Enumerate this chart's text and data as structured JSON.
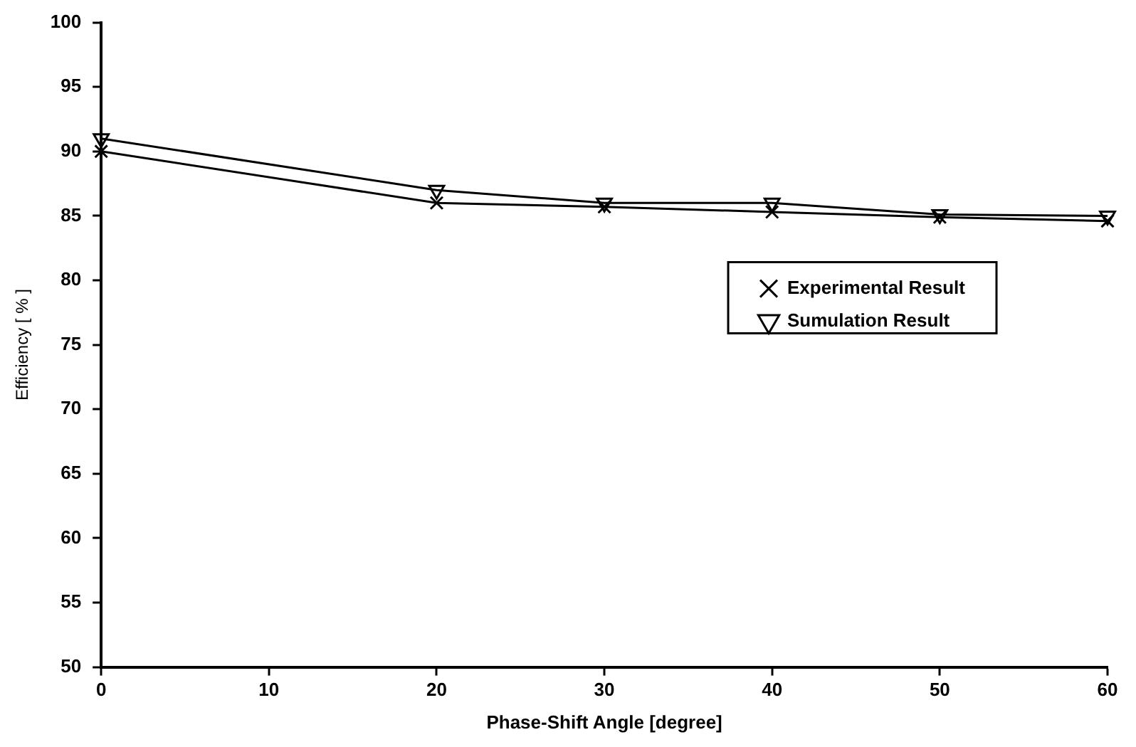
{
  "chart_data": {
    "type": "line",
    "xlabel": "Phase-Shift Angle [degree]",
    "ylabel": "Efficiency [ % ]",
    "x": [
      0,
      20,
      30,
      40,
      50,
      60
    ],
    "series": [
      {
        "name": "Experimental Result",
        "color": "#000000",
        "marker": "cross",
        "values": [
          90,
          86,
          85.7,
          85.3,
          84.9,
          84.6
        ]
      },
      {
        "name": "Sumulation Result",
        "color": "#000000",
        "marker": "triangle",
        "values": [
          91,
          87,
          86,
          86,
          85.1,
          85
        ]
      }
    ],
    "xlim": [
      0,
      60
    ],
    "xticks": [
      0,
      10,
      20,
      30,
      40,
      50,
      60
    ],
    "ylim": [
      50,
      100
    ],
    "yticks": [
      50,
      55,
      60,
      65,
      70,
      75,
      80,
      85,
      90,
      95,
      100
    ],
    "grid": false,
    "legend": "center right",
    "line_style": "solid"
  }
}
